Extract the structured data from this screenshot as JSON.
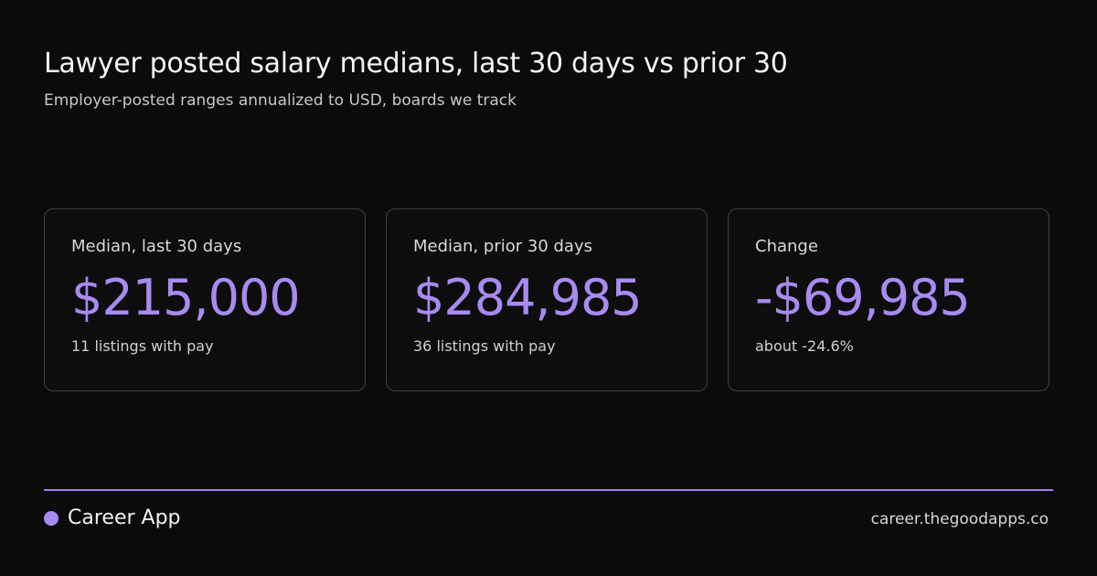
{
  "header": {
    "title": "Lawyer posted salary medians, last 30 days vs prior 30",
    "subtitle": "Employer-posted ranges annualized to USD, boards we track"
  },
  "cards": [
    {
      "label": "Median, last 30 days",
      "value": "$215,000",
      "note": "11 listings with pay"
    },
    {
      "label": "Median, prior 30 days",
      "value": "$284,985",
      "note": "36 listings with pay"
    },
    {
      "label": "Change",
      "value": "-$69,985",
      "note": "about -24.6%"
    }
  ],
  "footer": {
    "brand": "Career App",
    "url": "career.thegoodapps.co"
  }
}
